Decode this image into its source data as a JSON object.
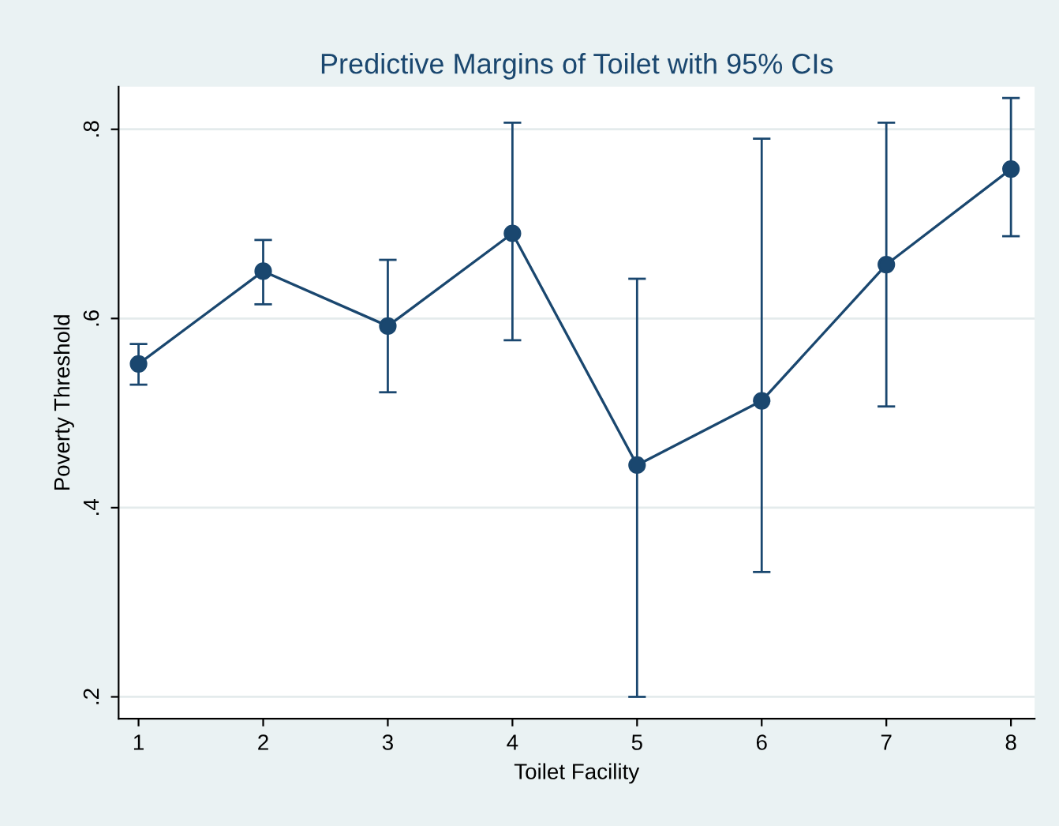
{
  "chart_data": {
    "type": "line",
    "title": "Predictive Margins of Toilet with 95% CIs",
    "xlabel": "Toilet Facility",
    "ylabel": "Poverty Threshold",
    "x": [
      1,
      2,
      3,
      4,
      5,
      6,
      7,
      8
    ],
    "series": [
      {
        "color": "#1a476f",
        "values": [
          0.552,
          0.65,
          0.592,
          0.69,
          0.445,
          0.513,
          0.657,
          0.758
        ],
        "errors": [
          [
            0.53,
            0.573
          ],
          [
            0.615,
            0.683
          ],
          [
            0.522,
            0.662
          ],
          [
            0.577,
            0.807
          ],
          [
            0.2,
            0.642
          ],
          [
            0.332,
            0.79
          ],
          [
            0.507,
            0.807
          ],
          [
            0.687,
            0.833
          ]
        ]
      }
    ],
    "xlim": [
      0.84,
      8.19
    ],
    "ylim": [
      0.177,
      0.845
    ],
    "xticks": [
      1,
      2,
      3,
      4,
      5,
      6,
      7,
      8
    ],
    "yticks": [
      {
        "value": 0.2,
        "label": ".2"
      },
      {
        "value": 0.4,
        "label": ".4"
      },
      {
        "value": 0.6,
        "label": ".6"
      },
      {
        "value": 0.8,
        "label": ".8"
      }
    ],
    "grid": "y",
    "marker": "circle",
    "line_style": "solid"
  }
}
